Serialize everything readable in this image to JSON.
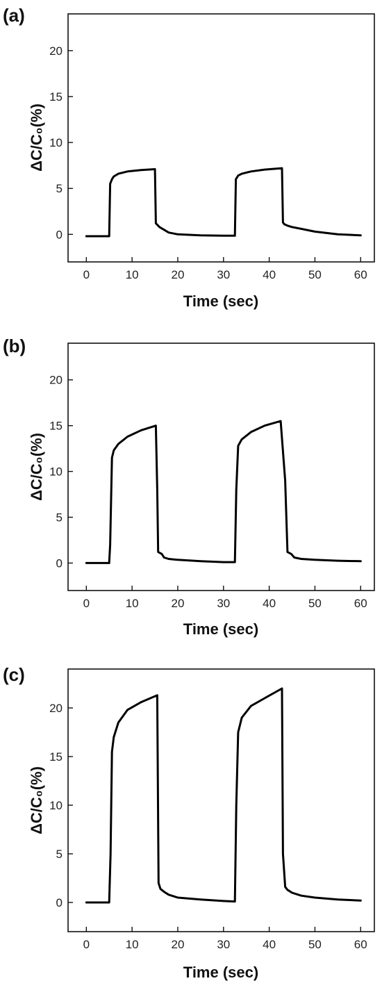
{
  "chart_data": [
    {
      "type": "line",
      "panel_label": "(a)",
      "xlabel": "Time (sec)",
      "ylabel": "ΔC/C₀(%)",
      "xlim": [
        -4,
        63
      ],
      "ylim": [
        -3,
        24
      ],
      "xticks": [
        0,
        10,
        20,
        30,
        40,
        50,
        60
      ],
      "yticks": [
        0,
        5,
        10,
        15,
        20
      ],
      "grid": false,
      "series": [
        {
          "x": [
            0,
            2,
            5,
            5.2,
            5.6,
            6,
            7,
            9,
            12,
            15,
            15.2,
            15.6,
            16,
            17,
            18,
            20,
            25,
            30,
            32.5,
            32.7,
            33.2,
            34,
            36,
            39,
            42.8,
            43,
            43.3,
            44,
            45,
            47,
            50,
            55,
            60
          ],
          "y": [
            -0.2,
            -0.2,
            -0.2,
            5.5,
            6.0,
            6.3,
            6.6,
            6.85,
            7.0,
            7.1,
            1.2,
            1.0,
            0.8,
            0.5,
            0.2,
            0.0,
            -0.1,
            -0.15,
            -0.15,
            6.0,
            6.4,
            6.6,
            6.85,
            7.05,
            7.2,
            1.3,
            1.1,
            0.95,
            0.8,
            0.6,
            0.3,
            0.0,
            -0.1
          ]
        }
      ]
    },
    {
      "type": "line",
      "panel_label": "(b)",
      "xlabel": "Time (sec)",
      "ylabel": "ΔC/C₀(%)",
      "xlim": [
        -4,
        63
      ],
      "ylim": [
        -3,
        24
      ],
      "xticks": [
        0,
        10,
        20,
        30,
        40,
        50,
        60
      ],
      "yticks": [
        0,
        5,
        10,
        15,
        20
      ],
      "grid": false,
      "series": [
        {
          "x": [
            0,
            2,
            5,
            5.2,
            5.6,
            6,
            7,
            9,
            12,
            15.2,
            15.5,
            15.7,
            16.5,
            17,
            18,
            20,
            25,
            30,
            32.5,
            32.8,
            33.2,
            34,
            36,
            39,
            42.5,
            43.5,
            44,
            44.8,
            45.5,
            47,
            50,
            55,
            60
          ],
          "y": [
            0,
            0,
            0,
            2,
            11.5,
            12.3,
            13.0,
            13.8,
            14.5,
            15.0,
            8.0,
            1.2,
            1.0,
            0.6,
            0.45,
            0.35,
            0.2,
            0.1,
            0.1,
            8,
            12.8,
            13.5,
            14.3,
            15.0,
            15.5,
            9.0,
            1.2,
            1.0,
            0.6,
            0.45,
            0.35,
            0.25,
            0.2
          ]
        }
      ]
    },
    {
      "type": "line",
      "panel_label": "(c)",
      "xlabel": "Time (sec)",
      "ylabel": "ΔC/C₀(%)",
      "xlim": [
        -4,
        63
      ],
      "ylim": [
        -3,
        24
      ],
      "xticks": [
        0,
        10,
        20,
        30,
        40,
        50,
        60
      ],
      "yticks": [
        0,
        5,
        10,
        15,
        20
      ],
      "grid": false,
      "series": [
        {
          "x": [
            0,
            2,
            5,
            5.3,
            5.6,
            6,
            7,
            9,
            12,
            15.5,
            15.8,
            16.2,
            17,
            18,
            20,
            25,
            30,
            32.5,
            32.8,
            33.2,
            34,
            36,
            39,
            42.8,
            43,
            43.5,
            44,
            45,
            47,
            50,
            55,
            60
          ],
          "y": [
            0,
            0,
            0,
            5,
            15.5,
            17,
            18.5,
            19.8,
            20.6,
            21.3,
            2.0,
            1.4,
            1.1,
            0.8,
            0.5,
            0.3,
            0.15,
            0.1,
            10,
            17.5,
            19.0,
            20.2,
            21.0,
            22.0,
            5.0,
            1.6,
            1.3,
            1.0,
            0.7,
            0.5,
            0.3,
            0.2
          ]
        }
      ]
    }
  ]
}
